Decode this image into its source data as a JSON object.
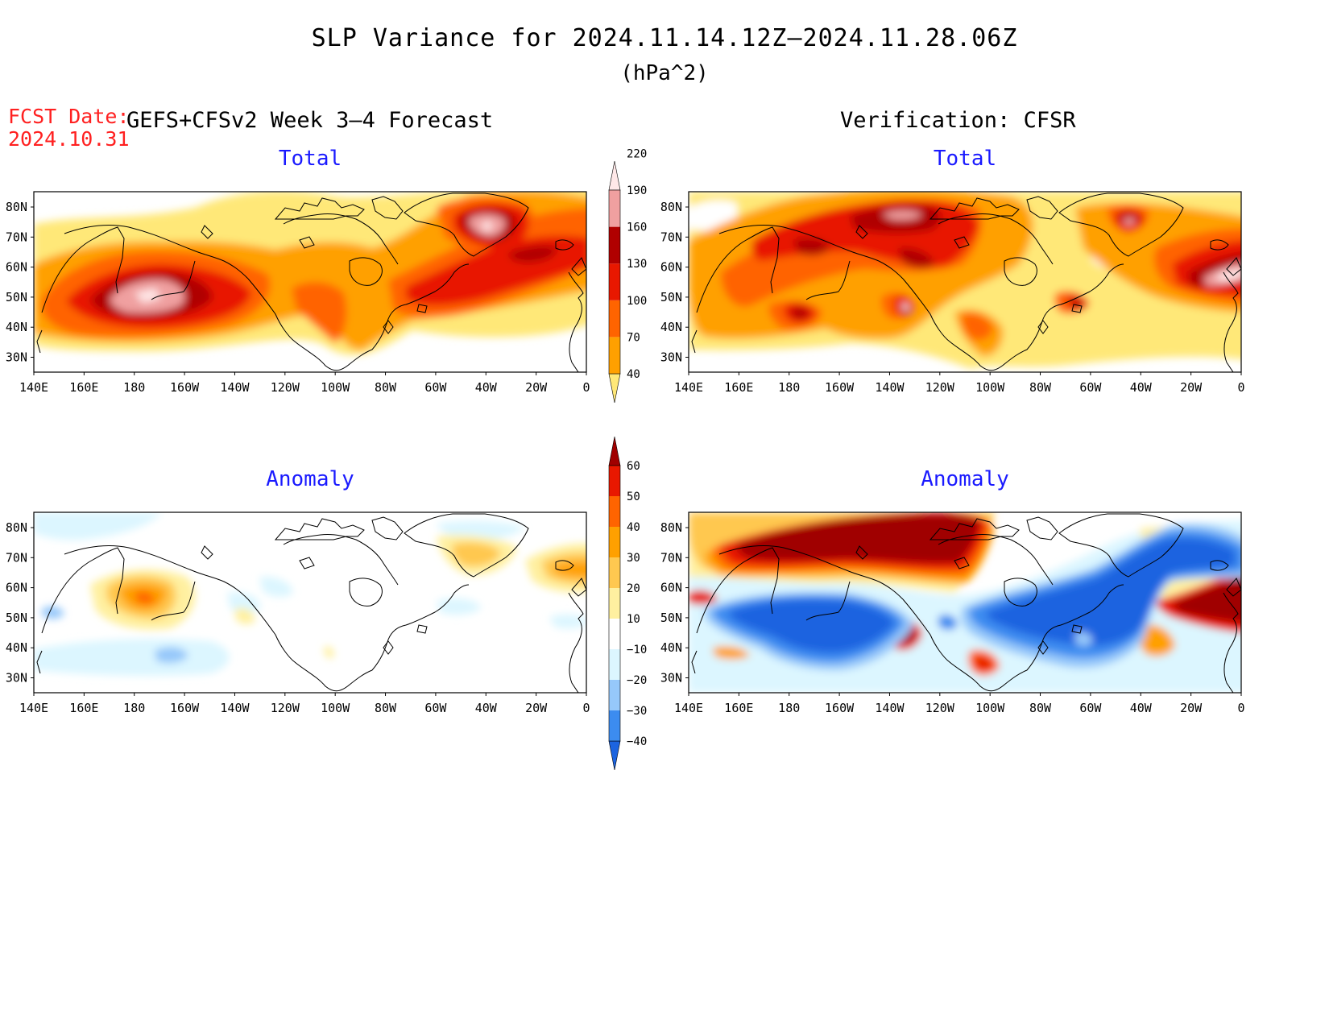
{
  "title": "SLP Variance for 2024.11.14.12Z–2024.11.28.06Z",
  "units": "(hPa^2)",
  "fcst_date_label": "FCST Date:",
  "fcst_date_value": "2024.10.31",
  "forecast_header": "GEFS+CFSv2 Week 3–4 Forecast",
  "verification_header": "Verification: CFSR",
  "panel_titles": {
    "total": "Total",
    "anomaly": "Anomaly"
  },
  "lon_labels": [
    "140E",
    "160E",
    "180",
    "160W",
    "140W",
    "120W",
    "100W",
    "80W",
    "60W",
    "40W",
    "20W",
    "0"
  ],
  "lat_labels": [
    "80N",
    "70N",
    "60N",
    "50N",
    "40N",
    "30N"
  ],
  "total_colorbar": {
    "levels": [
      "40",
      "70",
      "100",
      "130",
      "160",
      "190",
      "220"
    ],
    "colors": [
      "#ffe878",
      "#ffa000",
      "#ff6400",
      "#e81800",
      "#b00000",
      "#f0a0a0",
      "#ffe8e8"
    ]
  },
  "anomaly_colorbar": {
    "levels": [
      "−40",
      "−30",
      "−20",
      "−10",
      "10",
      "20",
      "30",
      "40",
      "50",
      "60"
    ],
    "colors": [
      "#1c64e0",
      "#3c8cf0",
      "#96c8fa",
      "#dcf6ff",
      "#ffffff",
      "#fff0a0",
      "#ffc850",
      "#ffa000",
      "#ff6400",
      "#e81800",
      "#a00000"
    ]
  },
  "colors": {
    "title_accent": "#1a1aff",
    "fcst_date": "#ff2020"
  }
}
